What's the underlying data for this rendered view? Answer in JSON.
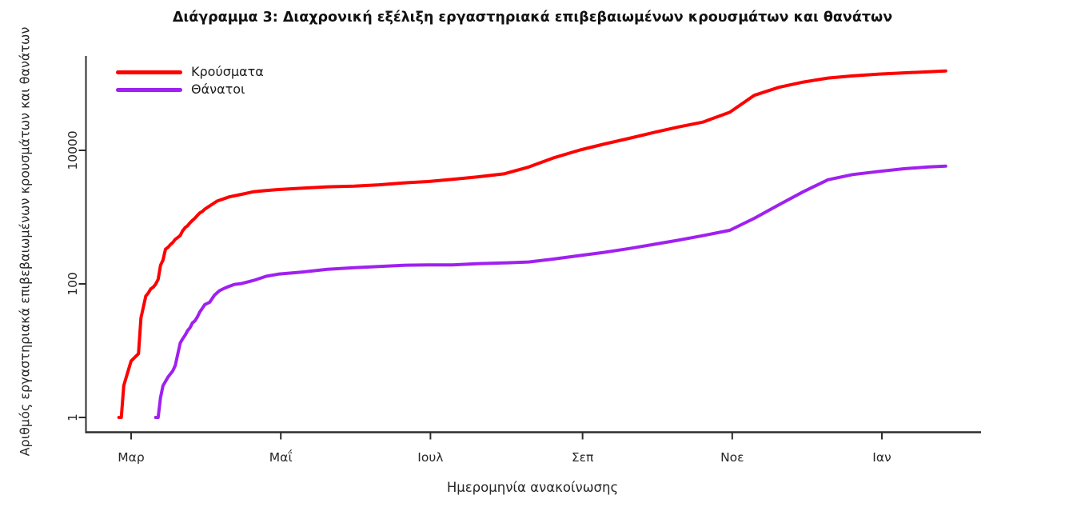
{
  "title": "Διάγραμμα 3: Διαχρονική εξέλιξη εργαστηριακά επιβεβαιωμένων κρουσμάτων και θανάτων",
  "chart_data": {
    "type": "line",
    "title": "Διάγραμμα 3: Διαχρονική εξέλιξη εργαστηριακά επιβεβαιωμένων κρουσμάτων και θανάτων",
    "xlabel": "Ημερομηνία ανακοίνωσης",
    "ylabel": "Αριθμός εργαστηριακά επιβεβαιωμένων κρουσμάτων και θανάτων",
    "axis_color": "#2e2e2e",
    "tick_text_color": "#262626",
    "grid": false,
    "legend_position": "top-left",
    "x_axis": {
      "label": "Ημερομηνία ανακοίνωσης",
      "tick_labels": [
        "Μαρ",
        "Μαΐ",
        "Ιουλ",
        "Σεπ",
        "Νοε",
        "Ιαν"
      ],
      "tick_days": [
        0,
        61,
        122,
        184,
        245,
        306
      ],
      "note_days_origin": "days since first tick (Μαρ)"
    },
    "y_axis": {
      "label": "Αριθμός εργαστηριακά επιβεβαιωμένων κρουσμάτων και θανάτων",
      "scale": "log10",
      "tick_values": [
        1,
        100,
        10000
      ],
      "tick_labels": [
        "1",
        "100",
        "10000"
      ],
      "range": [
        1,
        200000
      ]
    },
    "legend": [
      {
        "name": "Κρούσματα",
        "color": "#fe0000"
      },
      {
        "name": "Θάνατοι",
        "color": "#a020f0"
      }
    ],
    "series": [
      {
        "id": "cases",
        "name": "Κρούσματα",
        "color": "#fe0000",
        "points": [
          [
            -5,
            1
          ],
          [
            -4,
            1
          ],
          [
            -3,
            3
          ],
          [
            -2,
            4
          ],
          [
            0,
            7
          ],
          [
            3,
            9
          ],
          [
            4,
            31
          ],
          [
            5,
            45
          ],
          [
            6,
            66
          ],
          [
            7,
            73
          ],
          [
            8,
            84
          ],
          [
            9,
            89
          ],
          [
            10,
            99
          ],
          [
            11,
            117
          ],
          [
            12,
            190
          ],
          [
            13,
            228
          ],
          [
            14,
            331
          ],
          [
            15,
            352
          ],
          [
            16,
            387
          ],
          [
            17,
            418
          ],
          [
            18,
            464
          ],
          [
            19,
            495
          ],
          [
            20,
            530
          ],
          [
            21,
            624
          ],
          [
            22,
            695
          ],
          [
            23,
            743
          ],
          [
            24,
            821
          ],
          [
            25,
            892
          ],
          [
            26,
            966
          ],
          [
            27,
            1061
          ],
          [
            28,
            1156
          ],
          [
            29,
            1212
          ],
          [
            30,
            1314
          ],
          [
            35,
            1735
          ],
          [
            40,
            2011
          ],
          [
            45,
            2192
          ],
          [
            50,
            2401
          ],
          [
            55,
            2506
          ],
          [
            60,
            2591
          ],
          [
            70,
            2716
          ],
          [
            80,
            2840
          ],
          [
            91,
            2915
          ],
          [
            101,
            3049
          ],
          [
            111,
            3256
          ],
          [
            121,
            3409
          ],
          [
            131,
            3672
          ],
          [
            141,
            4007
          ],
          [
            152,
            4447
          ],
          [
            162,
            5623
          ],
          [
            172,
            7684
          ],
          [
            183,
            10134
          ],
          [
            193,
            12452
          ],
          [
            203,
            15142
          ],
          [
            213,
            18475
          ],
          [
            223,
            22358
          ],
          [
            233,
            26469
          ],
          [
            244,
            37196
          ],
          [
            254,
            66637
          ],
          [
            264,
            87812
          ],
          [
            274,
            105271
          ],
          [
            284,
            120926
          ],
          [
            294,
            130177
          ],
          [
            305,
            138850
          ],
          [
            315,
            144738
          ],
          [
            325,
            149911
          ],
          [
            332,
            154796
          ]
        ]
      },
      {
        "id": "deaths",
        "name": "Θάνατοι",
        "color": "#a020f0",
        "points": [
          [
            10,
            1
          ],
          [
            11,
            1
          ],
          [
            12,
            2
          ],
          [
            13,
            3
          ],
          [
            15,
            4
          ],
          [
            17,
            5
          ],
          [
            18,
            6
          ],
          [
            20,
            13
          ],
          [
            21,
            15
          ],
          [
            22,
            17
          ],
          [
            23,
            20
          ],
          [
            24,
            22
          ],
          [
            25,
            26
          ],
          [
            26,
            28
          ],
          [
            27,
            32
          ],
          [
            28,
            38
          ],
          [
            29,
            43
          ],
          [
            30,
            49
          ],
          [
            32,
            53
          ],
          [
            34,
            68
          ],
          [
            36,
            79
          ],
          [
            38,
            86
          ],
          [
            40,
            92
          ],
          [
            42,
            98
          ],
          [
            45,
            101
          ],
          [
            50,
            113
          ],
          [
            55,
            130
          ],
          [
            60,
            140
          ],
          [
            70,
            151
          ],
          [
            80,
            165
          ],
          [
            91,
            175
          ],
          [
            101,
            182
          ],
          [
            111,
            190
          ],
          [
            121,
            192
          ],
          [
            131,
            193
          ],
          [
            141,
            201
          ],
          [
            152,
            206
          ],
          [
            162,
            213
          ],
          [
            172,
            235
          ],
          [
            183,
            266
          ],
          [
            193,
            297
          ],
          [
            203,
            338
          ],
          [
            213,
            391
          ],
          [
            223,
            451
          ],
          [
            233,
            528
          ],
          [
            244,
            635
          ],
          [
            254,
            959
          ],
          [
            264,
            1527
          ],
          [
            274,
            2406
          ],
          [
            284,
            3625
          ],
          [
            294,
            4340
          ],
          [
            305,
            4838
          ],
          [
            315,
            5302
          ],
          [
            325,
            5646
          ],
          [
            332,
            5796
          ]
        ]
      }
    ]
  }
}
